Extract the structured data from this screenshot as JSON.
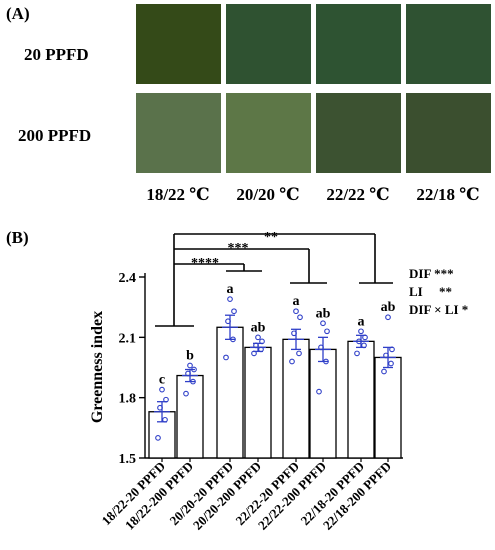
{
  "panel_a": {
    "label": "(A)",
    "rows": [
      {
        "label": "20 PPFD",
        "colors": [
          "#344a18",
          "#2f5231",
          "#2e5332",
          "#2f5232"
        ]
      },
      {
        "label": "200 PPFD",
        "colors": [
          "#5a724b",
          "#5d7747",
          "#3c5231",
          "#3b4f2f"
        ]
      }
    ],
    "columns": [
      "18/22 ℃",
      "20/20 ℃",
      "22/22 ℃",
      "22/18 ℃"
    ]
  },
  "panel_b": {
    "label": "(B)",
    "stats": [
      "DIF ***",
      "LI     **",
      "DIF × LI *"
    ],
    "brackets": [
      "**",
      "***",
      "****"
    ]
  },
  "chart_data": {
    "type": "bar",
    "ylabel": "Greenness index",
    "ylim": [
      1.5,
      2.4
    ],
    "yticks": [
      "1.5",
      "1.8",
      "2.1",
      "2.4"
    ],
    "categories": [
      "18/22-20 PPFD",
      "18/22-200 PPFD",
      "20/20-20 PPFD",
      "20/20-200 PPFD",
      "22/22-20 PPFD",
      "22/22-200 PPFD",
      "22/18-20 PPFD",
      "22/18-200 PPFD"
    ],
    "values": [
      1.73,
      1.91,
      2.15,
      2.05,
      2.09,
      2.04,
      2.08,
      2.0
    ],
    "errors": [
      0.05,
      0.03,
      0.06,
      0.02,
      0.05,
      0.06,
      0.03,
      0.05
    ],
    "letters": [
      "c",
      "b",
      "a",
      "ab",
      "a",
      "ab",
      "a",
      "ab"
    ],
    "points": [
      [
        1.6,
        1.69,
        1.75,
        1.79,
        1.84
      ],
      [
        1.82,
        1.88,
        1.92,
        1.94,
        1.96
      ],
      [
        2.0,
        2.09,
        2.18,
        2.23,
        2.29
      ],
      [
        2.02,
        2.04,
        2.06,
        2.08,
        2.1
      ],
      [
        1.98,
        2.02,
        2.12,
        2.2,
        2.23
      ],
      [
        1.83,
        1.98,
        2.05,
        2.13,
        2.17
      ],
      [
        2.02,
        2.06,
        2.08,
        2.1,
        2.13
      ],
      [
        1.93,
        1.97,
        2.01,
        2.04,
        2.2
      ]
    ],
    "bar_color": "#ffffff",
    "point_color": "#2f3fc8"
  }
}
